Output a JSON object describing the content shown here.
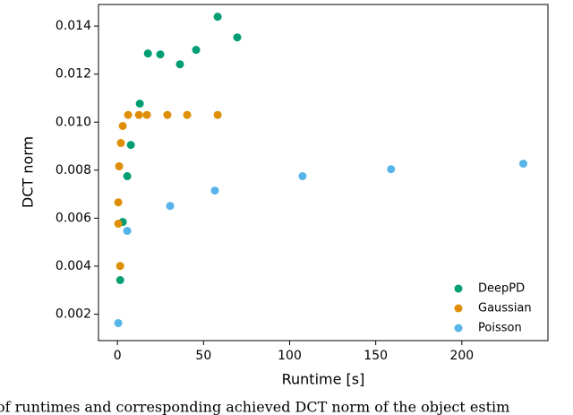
{
  "chart_data": {
    "type": "scatter",
    "x_label": "Runtime [s]",
    "y_label": "DCT norm",
    "caption": "of runtimes and corresponding achieved DCT norm of the object estim",
    "xlim": [
      -11,
      250
    ],
    "ylim": [
      0.0009,
      0.0149
    ],
    "xticks": [
      0,
      50,
      100,
      150,
      200
    ],
    "yticks": [
      0.002,
      0.004,
      0.006,
      0.008,
      {
        "value": 0.01,
        "label": "0.010"
      },
      0.012,
      0.014
    ],
    "legend": "lower right",
    "series": [
      {
        "name": "DeepPD",
        "color": "#029e73",
        "x": [
          1.6,
          3.1,
          5.7,
          7.8,
          13,
          17.7,
          24.9,
          36.3,
          45.7,
          58.2,
          69.6
        ],
        "values": [
          0.00342,
          0.00584,
          0.00775,
          0.00905,
          0.01077,
          0.01286,
          0.01282,
          0.01241,
          0.01301,
          0.01439,
          0.01353
        ]
      },
      {
        "name": "Gaussian",
        "color": "#de8f05",
        "x": [
          0.5,
          0.5,
          1,
          1.6,
          2,
          3.1,
          6.2,
          12.5,
          17.1,
          29,
          40.5,
          58.2
        ],
        "values": [
          0.00577,
          0.00666,
          0.00816,
          0.00401,
          0.00913,
          0.00984,
          0.0103,
          0.0103,
          0.0103,
          0.0103,
          0.0103,
          0.0103
        ]
      },
      {
        "name": "Poisson",
        "color": "#56b4e9",
        "x": [
          0.5,
          5.7,
          30.6,
          56.6,
          107.5,
          158.9,
          235.7
        ],
        "values": [
          0.00163,
          0.00547,
          0.00651,
          0.00715,
          0.00775,
          0.00804,
          0.00827
        ]
      }
    ]
  }
}
